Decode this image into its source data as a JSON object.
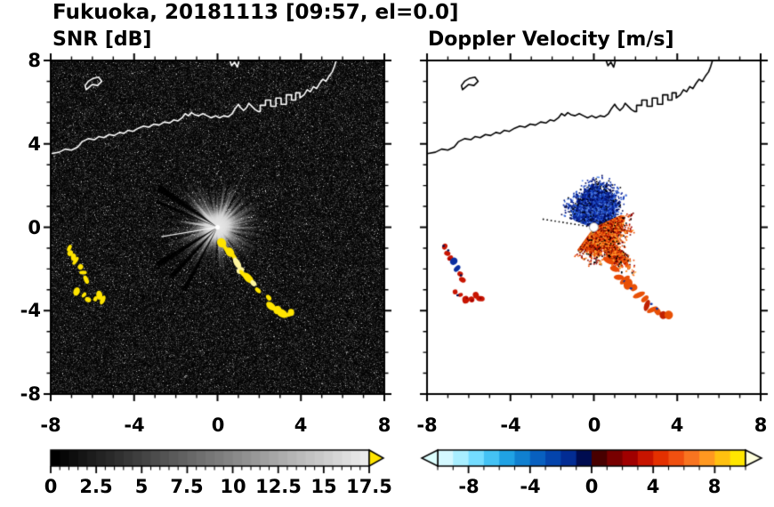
{
  "title": "Fukuoka, 20181113 [09:57, el=0.0]",
  "panels": {
    "snr": {
      "title": "SNR [dB]"
    },
    "doppler": {
      "title": "Doppler Velocity [m/s]"
    }
  },
  "axes": {
    "x_tick_labels": [
      "-8",
      "-4",
      "0",
      "4",
      "8"
    ],
    "y_tick_labels": [
      "8",
      "4",
      "0",
      "-4",
      "-8"
    ]
  },
  "colorbars": {
    "snr": {
      "tick_labels": [
        "0",
        "2.5",
        "5",
        "7.5",
        "10",
        "12.5",
        "15",
        "17.5"
      ]
    },
    "doppler": {
      "tick_labels": [
        "-8",
        "-4",
        "0",
        "4",
        "8"
      ]
    }
  },
  "chart_data": {
    "type": "heatmap",
    "subtype": "radar PPI scan, two panels",
    "title": "Fukuoka, 20181113 [09:57, el=0.0]",
    "station": "Fukuoka",
    "date": "20181113",
    "time": "09:57",
    "elevation_deg": 0.0,
    "panels": [
      {
        "name": "snr",
        "title": "SNR [dB]",
        "xlim": [
          -8,
          8
        ],
        "ylim": [
          -8,
          8
        ],
        "x_ticks": [
          -8,
          -4,
          0,
          4,
          8
        ],
        "y_ticks": [
          -8,
          -4,
          0,
          4,
          8
        ],
        "background": "#000000",
        "colorbar": {
          "range": [
            0,
            17.5
          ],
          "ticks": [
            0,
            2.5,
            5,
            7.5,
            10,
            12.5,
            15,
            17.5
          ],
          "colormap": "grayscale black-to-white",
          "over_color": "#ffe400"
        },
        "features": [
          "dark speckle noise field over whole domain",
          "bright gray radial echo fan centered on radar at (0,0), radius about 2.5 km, with thin dark shadow spokes to the south",
          "thin bright ray from origin toward (-2.7,-0.45)",
          "yellow high-SNR arc of echoes from (0.25,-0.75) to (3.6,-4.2)",
          "yellow echo patches between (-7.2,-0.9) and (-5.5,-3.5)",
          "white coastline of Hakata Bay across the north with small island near (-6,6.9) and harbor structures near (2.5,6)"
        ]
      },
      {
        "name": "doppler",
        "title": "Doppler Velocity [m/s]",
        "xlim": [
          -8,
          8
        ],
        "ylim": [
          -8,
          8
        ],
        "x_ticks": [
          -8,
          -4,
          0,
          4,
          8
        ],
        "y_ticks": [
          -8,
          -4,
          0,
          4,
          8
        ],
        "background": "#ffffff",
        "colorbar": {
          "range": [
            -10,
            10
          ],
          "ticks": [
            -8,
            -4,
            0,
            4,
            8
          ],
          "colormap_stops": [
            "#d4f8ff",
            "#a8eeff",
            "#74dcff",
            "#44c2f4",
            "#20a2e4",
            "#1080d0",
            "#0860c0",
            "#0444ac",
            "#022c94",
            "#000c50",
            "#480000",
            "#780000",
            "#a00000",
            "#c81400",
            "#e43000",
            "#f05010",
            "#f87420",
            "#ff9820",
            "#ffc010",
            "#ffe600"
          ],
          "under_arrow_color": "#ddffff",
          "over_arrow_color": "#ffffdd"
        },
        "features": [
          "blue fan of negative (approaching) velocities north of the radar, radius about 2.3 km",
          "orange-red fan of positive (receding) velocities east to south of the radar with tail toward southeast",
          "small white data-gap circle at radar origin",
          "dotted gap line from origin toward (-2.6,-0.45)",
          "mixed red/blue echo patches between (-7.2,-0.9) and (-5.5,-3.5)",
          "orange echoes along arc from (1.45,-2.5) to (3.6,-4.2)",
          "black coastline identical to SNR panel"
        ]
      }
    ]
  }
}
